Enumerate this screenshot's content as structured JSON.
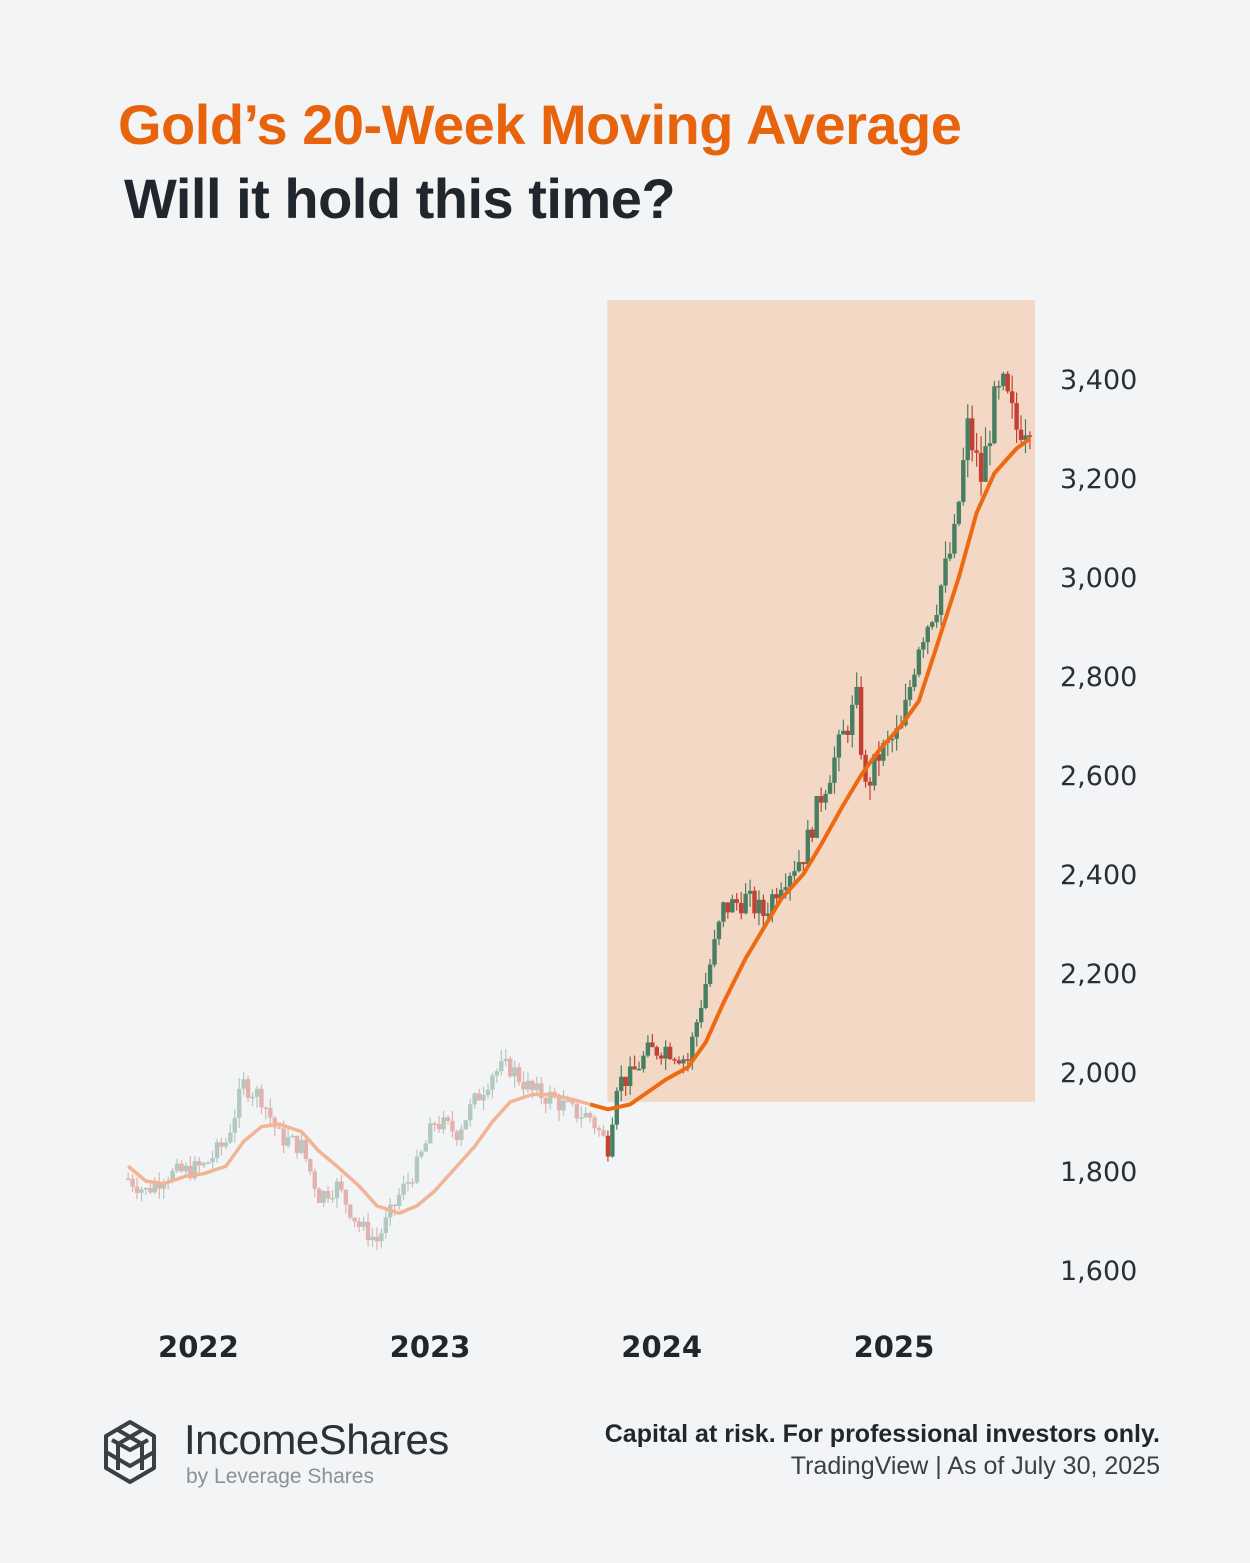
{
  "header": {
    "title": "Gold’s 20-Week Moving Average",
    "subtitle": "Will it hold this time?"
  },
  "footer": {
    "brand_name": "IncomeShares",
    "brand_sub": "by Leverage Shares",
    "disclaimer": "Capital at risk. For professional investors only.",
    "source": "TradingView",
    "as_of": "As of July 30, 2025",
    "logo_icon": "incomeshares-logo-icon"
  },
  "colors": {
    "background": "#f3f4f6",
    "title": "#e8640c",
    "highlight": "#f4d8c6",
    "ma_line": "#ee6a12",
    "ma_line_faded": "#f2b494",
    "candle_up": "#3f7a5c",
    "candle_down": "#c0392b"
  },
  "chart_data": {
    "type": "candlestick",
    "frequency": "weekly",
    "ylim": [
      1560,
      3560
    ],
    "yticks": [
      "1,600",
      "1,800",
      "2,000",
      "2,200",
      "2,400",
      "2,600",
      "2,800",
      "3,000",
      "3,200",
      "3,400"
    ],
    "ytick_values": [
      1600,
      1800,
      2000,
      2200,
      2400,
      2600,
      2800,
      3000,
      3200,
      3400
    ],
    "xticks": [
      "2022",
      "2023",
      "2024",
      "2025"
    ],
    "xtick_dates": [
      "2022-01-01",
      "2023-01-01",
      "2024-01-01",
      "2025-01-01"
    ],
    "x_range": [
      "2021-09-01",
      "2025-08-05"
    ],
    "highlight_range": {
      "start": "2023-10-01",
      "end": "2025-08-05",
      "y_from": 1940,
      "y_to": 3560
    },
    "price_close": [
      [
        "2021-09-06",
        1785
      ],
      [
        "2021-10-04",
        1760
      ],
      [
        "2021-11-01",
        1790
      ],
      [
        "2021-12-06",
        1800
      ],
      [
        "2022-01-03",
        1810
      ],
      [
        "2022-02-07",
        1860
      ],
      [
        "2022-03-07",
        1975
      ],
      [
        "2022-04-04",
        1950
      ],
      [
        "2022-05-02",
        1870
      ],
      [
        "2022-06-06",
        1850
      ],
      [
        "2022-07-04",
        1750
      ],
      [
        "2022-08-01",
        1770
      ],
      [
        "2022-09-05",
        1690
      ],
      [
        "2022-10-03",
        1660
      ],
      [
        "2022-11-07",
        1750
      ],
      [
        "2022-12-05",
        1810
      ],
      [
        "2023-01-02",
        1900
      ],
      [
        "2023-02-06",
        1880
      ],
      [
        "2023-03-06",
        1940
      ],
      [
        "2023-04-03",
        2000
      ],
      [
        "2023-05-01",
        2010
      ],
      [
        "2023-06-05",
        1960
      ],
      [
        "2023-07-03",
        1950
      ],
      [
        "2023-08-07",
        1920
      ],
      [
        "2023-09-04",
        1910
      ],
      [
        "2023-10-02",
        1850
      ],
      [
        "2023-10-16",
        1980
      ],
      [
        "2023-11-06",
        1990
      ],
      [
        "2023-12-04",
        2040
      ],
      [
        "2024-01-01",
        2050
      ],
      [
        "2024-02-05",
        2025
      ],
      [
        "2024-03-04",
        2180
      ],
      [
        "2024-04-01",
        2330
      ],
      [
        "2024-05-06",
        2350
      ],
      [
        "2024-06-03",
        2320
      ],
      [
        "2024-07-01",
        2390
      ],
      [
        "2024-08-05",
        2440
      ],
      [
        "2024-09-02",
        2560
      ],
      [
        "2024-10-07",
        2680
      ],
      [
        "2024-10-28",
        2750
      ],
      [
        "2024-11-11",
        2570
      ],
      [
        "2024-12-02",
        2640
      ],
      [
        "2025-01-06",
        2690
      ],
      [
        "2025-02-03",
        2870
      ],
      [
        "2025-03-03",
        2950
      ],
      [
        "2025-03-31",
        3080
      ],
      [
        "2025-04-21",
        3300
      ],
      [
        "2025-05-12",
        3200
      ],
      [
        "2025-06-02",
        3350
      ],
      [
        "2025-06-16",
        3380
      ],
      [
        "2025-07-07",
        3300
      ],
      [
        "2025-07-28",
        3320
      ]
    ],
    "ma_20w": [
      [
        "2021-09-06",
        1810
      ],
      [
        "2021-10-04",
        1780
      ],
      [
        "2021-11-01",
        1775
      ],
      [
        "2021-12-06",
        1790
      ],
      [
        "2022-01-03",
        1795
      ],
      [
        "2022-02-07",
        1810
      ],
      [
        "2022-03-07",
        1860
      ],
      [
        "2022-04-04",
        1890
      ],
      [
        "2022-05-02",
        1895
      ],
      [
        "2022-06-06",
        1880
      ],
      [
        "2022-07-04",
        1840
      ],
      [
        "2022-08-01",
        1810
      ],
      [
        "2022-09-05",
        1770
      ],
      [
        "2022-10-03",
        1730
      ],
      [
        "2022-11-07",
        1715
      ],
      [
        "2022-12-05",
        1730
      ],
      [
        "2023-01-02",
        1760
      ],
      [
        "2023-02-06",
        1810
      ],
      [
        "2023-03-06",
        1850
      ],
      [
        "2023-04-03",
        1900
      ],
      [
        "2023-05-01",
        1940
      ],
      [
        "2023-06-05",
        1955
      ],
      [
        "2023-07-03",
        1955
      ],
      [
        "2023-08-07",
        1945
      ],
      [
        "2023-09-04",
        1935
      ],
      [
        "2023-10-02",
        1925
      ],
      [
        "2023-11-06",
        1935
      ],
      [
        "2023-12-04",
        1960
      ],
      [
        "2024-01-01",
        1985
      ],
      [
        "2024-02-05",
        2010
      ],
      [
        "2024-03-04",
        2060
      ],
      [
        "2024-04-01",
        2140
      ],
      [
        "2024-05-06",
        2230
      ],
      [
        "2024-06-03",
        2290
      ],
      [
        "2024-07-01",
        2350
      ],
      [
        "2024-08-05",
        2400
      ],
      [
        "2024-09-02",
        2460
      ],
      [
        "2024-10-07",
        2540
      ],
      [
        "2024-11-04",
        2600
      ],
      [
        "2024-12-02",
        2650
      ],
      [
        "2025-01-06",
        2700
      ],
      [
        "2025-02-03",
        2750
      ],
      [
        "2025-03-03",
        2860
      ],
      [
        "2025-04-07",
        3000
      ],
      [
        "2025-05-05",
        3130
      ],
      [
        "2025-06-02",
        3210
      ],
      [
        "2025-07-07",
        3260
      ],
      [
        "2025-07-28",
        3280
      ]
    ]
  }
}
